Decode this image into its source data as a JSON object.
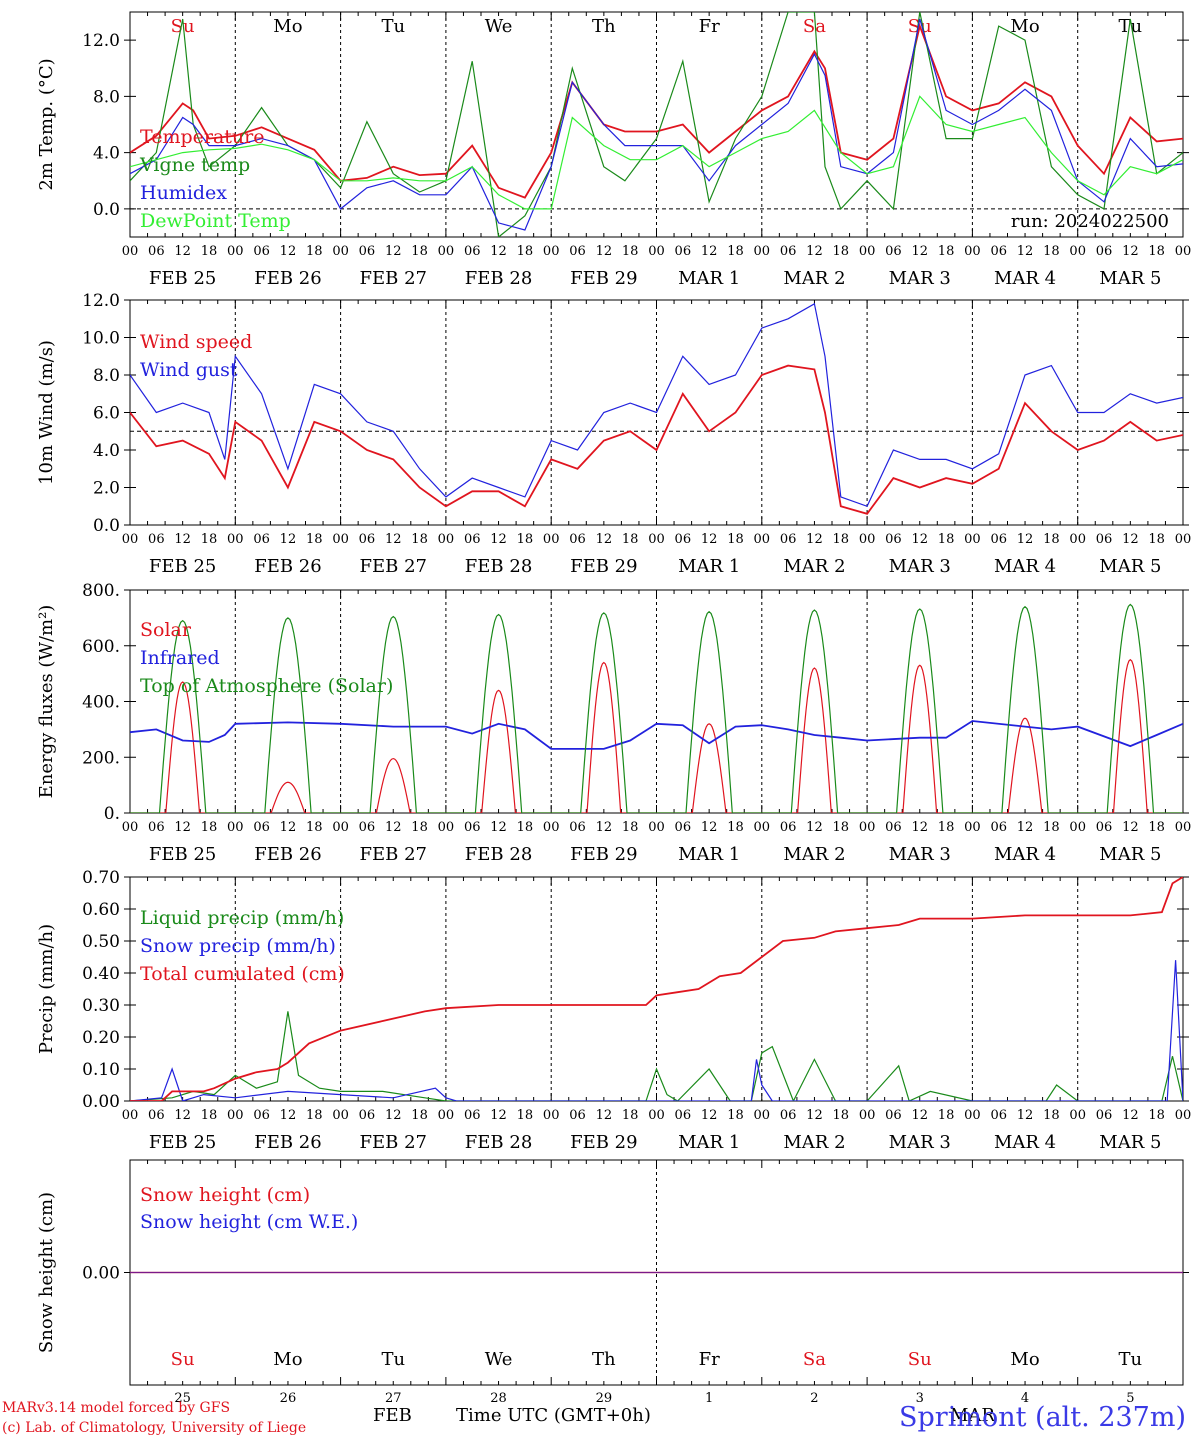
{
  "colors": {
    "red": "#e0151f",
    "blue": "#2222dd",
    "green": "#1a8a1a",
    "lightgreen": "#33ee33",
    "purple": "#7a1a8a",
    "axis": "#000000"
  },
  "day_names": [
    "Su",
    "Mo",
    "Tu",
    "We",
    "Th",
    "Fr",
    "Sa",
    "Su",
    "Mo",
    "Tu"
  ],
  "weekend_days": [
    0,
    6,
    7
  ],
  "date_labels": [
    "FEB  25",
    "FEB  26",
    "FEB  27",
    "FEB  28",
    "FEB  29",
    "MAR   1",
    "MAR   2",
    "MAR   3",
    "MAR   4",
    "MAR   5"
  ],
  "hour_labels": [
    "00",
    "06",
    "12",
    "18"
  ],
  "last_hour_label": "00",
  "day_numbers": [
    "25",
    "26",
    "27",
    "28",
    "29",
    "1",
    "2",
    "3",
    "4",
    "5"
  ],
  "footer": {
    "credit_line1": "MARv3.14 model forced by GFS",
    "credit_line2": "(c) Lab. of Climatology, University of Liege",
    "xlabel": "Time UTC (GMT+0h)",
    "month_feb": "FEB",
    "month_mar": "MAR",
    "station": "Sprimont (alt. 237m)"
  },
  "chart_data": [
    {
      "type": "line",
      "ylabel": "2m Temp. (°C)",
      "ylim": [
        -2.0,
        14.0
      ],
      "yticks": [
        0.0,
        4.0,
        8.0,
        12.0
      ],
      "ytick_labels": [
        "0.0",
        "4.0",
        "8.0",
        "12.0"
      ],
      "ref_line": 0.0,
      "annotation": "run: 2024022500",
      "series": [
        {
          "name": "Temperature",
          "color": "red",
          "x_days": [
            0,
            0.25,
            0.5,
            0.6,
            0.75,
            1,
            1.25,
            1.5,
            1.75,
            2,
            2.25,
            2.5,
            2.75,
            3,
            3.25,
            3.5,
            3.75,
            4,
            4.2,
            4.5,
            4.7,
            5,
            5.25,
            5.5,
            5.75,
            6,
            6.25,
            6.5,
            6.6,
            6.75,
            7,
            7.25,
            7.5,
            7.75,
            8,
            8.25,
            8.5,
            8.75,
            9,
            9.25,
            9.5,
            9.75,
            10
          ],
          "values": [
            4.0,
            5.2,
            7.5,
            7.0,
            5.0,
            5.2,
            5.8,
            5.0,
            4.2,
            2.0,
            2.2,
            3.0,
            2.4,
            2.5,
            4.5,
            1.5,
            0.8,
            4.0,
            9.0,
            6.0,
            5.5,
            5.5,
            6.0,
            4.0,
            5.5,
            7.0,
            8.0,
            11.2,
            10.0,
            4.0,
            3.5,
            5.0,
            13.0,
            8.0,
            7.0,
            7.5,
            9.0,
            8.0,
            4.5,
            2.5,
            6.5,
            4.8,
            5.0
          ]
        },
        {
          "name": "Vigne temp",
          "color": "green",
          "x_days": [
            0,
            0.25,
            0.5,
            0.6,
            0.75,
            1,
            1.25,
            1.5,
            1.75,
            2,
            2.25,
            2.5,
            2.75,
            3,
            3.25,
            3.5,
            3.75,
            4,
            4.2,
            4.5,
            4.7,
            5,
            5.25,
            5.5,
            5.75,
            6,
            6.25,
            6.5,
            6.6,
            6.75,
            7,
            7.25,
            7.5,
            7.75,
            8,
            8.25,
            8.5,
            8.75,
            9,
            9.25,
            9.5,
            9.75,
            10
          ],
          "values": [
            2.0,
            4.0,
            13.5,
            6.0,
            3.0,
            4.5,
            7.2,
            4.5,
            3.5,
            1.5,
            6.2,
            2.5,
            1.2,
            2.0,
            10.5,
            -2.0,
            -0.5,
            3.0,
            10.0,
            3.0,
            2.0,
            5.0,
            10.5,
            0.5,
            5.0,
            8.0,
            14.0,
            14.0,
            3.0,
            0.0,
            2.0,
            0.0,
            14.0,
            5.0,
            5.0,
            13.0,
            12.0,
            3.0,
            1.0,
            0.0,
            13.5,
            2.5,
            4.0
          ]
        },
        {
          "name": "Humidex",
          "color": "blue",
          "x_days": [
            0,
            0.25,
            0.5,
            0.6,
            0.75,
            1,
            1.25,
            1.5,
            1.75,
            2,
            2.25,
            2.5,
            2.75,
            3,
            3.25,
            3.5,
            3.75,
            4,
            4.2,
            4.5,
            4.7,
            5,
            5.25,
            5.5,
            5.75,
            6,
            6.25,
            6.5,
            6.6,
            6.75,
            7,
            7.25,
            7.5,
            7.75,
            8,
            8.25,
            8.5,
            8.75,
            9,
            9.25,
            9.5,
            9.75,
            10
          ],
          "values": [
            2.5,
            3.5,
            6.5,
            6.0,
            4.5,
            4.5,
            5.0,
            4.5,
            3.5,
            0.0,
            1.5,
            2.0,
            1.0,
            1.0,
            3.0,
            -1.0,
            -1.5,
            3.0,
            9.0,
            6.0,
            4.5,
            4.5,
            4.5,
            2.0,
            4.5,
            6.0,
            7.5,
            11.0,
            9.5,
            3.0,
            2.5,
            4.0,
            13.5,
            7.0,
            6.0,
            7.0,
            8.5,
            7.0,
            2.0,
            0.5,
            5.0,
            3.0,
            3.2
          ]
        },
        {
          "name": "DewPoint Temp",
          "color": "lightgreen",
          "x_days": [
            0,
            0.25,
            0.5,
            0.75,
            1,
            1.25,
            1.5,
            1.75,
            2,
            2.25,
            2.5,
            2.75,
            3,
            3.25,
            3.5,
            3.75,
            4,
            4.2,
            4.5,
            4.75,
            5,
            5.25,
            5.5,
            5.75,
            6,
            6.25,
            6.5,
            6.75,
            7,
            7.25,
            7.5,
            7.75,
            8,
            8.25,
            8.5,
            8.75,
            9,
            9.25,
            9.5,
            9.75,
            10
          ],
          "values": [
            3.0,
            3.5,
            4.0,
            4.2,
            4.3,
            4.6,
            4.2,
            3.5,
            2.0,
            2.0,
            2.2,
            2.0,
            2.0,
            3.0,
            1.0,
            0.0,
            0.0,
            6.5,
            4.5,
            3.5,
            3.5,
            4.5,
            3.0,
            4.0,
            5.0,
            5.5,
            7.0,
            4.0,
            2.5,
            3.0,
            8.0,
            6.0,
            5.5,
            6.0,
            6.5,
            4.0,
            2.0,
            1.0,
            3.0,
            2.5,
            3.5
          ]
        }
      ]
    },
    {
      "type": "line",
      "ylabel": "10m Wind (m/s)",
      "ylim": [
        0.0,
        12.0
      ],
      "yticks": [
        0.0,
        2.0,
        4.0,
        6.0,
        8.0,
        10.0,
        12.0
      ],
      "ytick_labels": [
        "0.0",
        "2.0",
        "4.0",
        "6.0",
        "8.0",
        "10.0",
        "12.0"
      ],
      "ref_line": 5.0,
      "series": [
        {
          "name": "Wind speed",
          "color": "red",
          "x_days": [
            0,
            0.25,
            0.5,
            0.75,
            0.9,
            1,
            1.25,
            1.5,
            1.75,
            2,
            2.25,
            2.5,
            2.75,
            3,
            3.25,
            3.5,
            3.75,
            4,
            4.25,
            4.5,
            4.75,
            5,
            5.25,
            5.5,
            5.75,
            6,
            6.25,
            6.5,
            6.6,
            6.75,
            7,
            7.25,
            7.5,
            7.75,
            8,
            8.25,
            8.5,
            8.75,
            9,
            9.25,
            9.5,
            9.75,
            10
          ],
          "values": [
            6.0,
            4.2,
            4.5,
            3.8,
            2.5,
            5.5,
            4.5,
            2.0,
            5.5,
            5.0,
            4.0,
            3.5,
            2.0,
            1.0,
            1.8,
            1.8,
            1.0,
            3.5,
            3.0,
            4.5,
            5.0,
            4.0,
            7.0,
            5.0,
            6.0,
            8.0,
            8.5,
            8.3,
            6.0,
            1.0,
            0.6,
            2.5,
            2.0,
            2.5,
            2.2,
            3.0,
            6.5,
            5.0,
            4.0,
            4.5,
            5.5,
            4.5,
            4.8
          ]
        },
        {
          "name": "Wind gust",
          "color": "blue",
          "x_days": [
            0,
            0.25,
            0.5,
            0.75,
            0.9,
            1,
            1.25,
            1.5,
            1.75,
            2,
            2.25,
            2.5,
            2.75,
            3,
            3.25,
            3.5,
            3.75,
            4,
            4.25,
            4.5,
            4.75,
            5,
            5.25,
            5.5,
            5.75,
            6,
            6.25,
            6.5,
            6.6,
            6.75,
            7,
            7.25,
            7.5,
            7.75,
            8,
            8.25,
            8.5,
            8.75,
            9,
            9.25,
            9.5,
            9.75,
            10
          ],
          "values": [
            8.0,
            6.0,
            6.5,
            6.0,
            3.5,
            9.0,
            7.0,
            3.0,
            7.5,
            7.0,
            5.5,
            5.0,
            3.0,
            1.5,
            2.5,
            2.0,
            1.5,
            4.5,
            4.0,
            6.0,
            6.5,
            6.0,
            9.0,
            7.5,
            8.0,
            10.5,
            11.0,
            11.8,
            9.0,
            1.5,
            1.0,
            4.0,
            3.5,
            3.5,
            3.0,
            3.8,
            8.0,
            8.5,
            6.0,
            6.0,
            7.0,
            6.5,
            6.8
          ]
        }
      ]
    },
    {
      "type": "line",
      "ylabel": "Energy fluxes (W/m²)",
      "ylim": [
        0,
        800
      ],
      "yticks": [
        0,
        200,
        400,
        600,
        800
      ],
      "ytick_labels": [
        "0.",
        "200.",
        "400.",
        "600.",
        "800."
      ],
      "series": [
        {
          "name": "Solar",
          "color": "red",
          "peaks": [
            470,
            110,
            195,
            440,
            540,
            320,
            520,
            530,
            340,
            550
          ]
        },
        {
          "name": "Infrared",
          "color": "blue",
          "x_days": [
            0,
            0.25,
            0.5,
            0.75,
            0.9,
            1,
            1.5,
            2,
            2.5,
            3,
            3.25,
            3.5,
            3.75,
            4,
            4.5,
            4.75,
            5,
            5.25,
            5.5,
            5.75,
            6,
            6.25,
            6.5,
            6.75,
            7,
            7.5,
            7.75,
            8,
            8.5,
            8.75,
            9,
            9.5,
            9.75,
            10
          ],
          "values": [
            290,
            300,
            260,
            255,
            280,
            320,
            325,
            320,
            310,
            310,
            285,
            320,
            300,
            230,
            230,
            260,
            320,
            315,
            250,
            310,
            315,
            300,
            280,
            270,
            260,
            270,
            270,
            330,
            310,
            300,
            310,
            240,
            280,
            320
          ]
        },
        {
          "name": "Top of Atmosphere (Solar)",
          "color": "green",
          "peaks": [
            690,
            700,
            705,
            712,
            718,
            722,
            728,
            732,
            740,
            748
          ]
        }
      ]
    },
    {
      "type": "line",
      "ylabel": "Precip (mm/h)",
      "ylim": [
        0.0,
        0.7
      ],
      "yticks": [
        0.0,
        0.1,
        0.2,
        0.3,
        0.4,
        0.5,
        0.6,
        0.7
      ],
      "ytick_labels": [
        "0.00",
        "0.10",
        "0.20",
        "0.30",
        "0.40",
        "0.50",
        "0.60",
        "0.70"
      ],
      "series": [
        {
          "name": "Liquid precip (mm/h)",
          "color": "green",
          "x_days": [
            0,
            0.4,
            0.6,
            0.8,
            1,
            1.2,
            1.4,
            1.5,
            1.6,
            1.8,
            2,
            2.4,
            2.8,
            3,
            3.5,
            4,
            4.9,
            5.0,
            5.1,
            5.2,
            5.5,
            5.7,
            5.9,
            6.0,
            6.1,
            6.3,
            6.5,
            6.7,
            7.0,
            7.3,
            7.4,
            7.6,
            8.0,
            8.7,
            8.8,
            9.0,
            9.8,
            9.9,
            10
          ],
          "values": [
            0,
            0.01,
            0.03,
            0.02,
            0.08,
            0.04,
            0.06,
            0.28,
            0.08,
            0.04,
            0.03,
            0.03,
            0.01,
            0.0,
            0.0,
            0.0,
            0.0,
            0.1,
            0.02,
            0.0,
            0.1,
            0.0,
            0.0,
            0.15,
            0.17,
            0.0,
            0.13,
            0.0,
            0.0,
            0.11,
            0.0,
            0.03,
            0.0,
            0.0,
            0.05,
            0.0,
            0.0,
            0.14,
            0.0
          ]
        },
        {
          "name": "Snow precip (mm/h)",
          "color": "blue",
          "x_days": [
            0,
            0.3,
            0.4,
            0.5,
            0.7,
            1,
            1.5,
            2,
            2.5,
            2.9,
            3.0,
            3.1,
            4,
            5,
            5.9,
            5.95,
            6.0,
            6.1,
            7,
            9,
            9.85,
            9.93,
            10
          ],
          "values": [
            0,
            0.01,
            0.1,
            0.0,
            0.02,
            0.01,
            0.03,
            0.02,
            0.01,
            0.04,
            0.01,
            0.0,
            0.0,
            0.0,
            0.0,
            0.13,
            0.05,
            0.0,
            0.0,
            0.0,
            0.0,
            0.44,
            0.0
          ]
        },
        {
          "name": "Total cumulated (cm)",
          "color": "red",
          "x_days": [
            0,
            0.3,
            0.4,
            0.7,
            0.8,
            1.0,
            1.2,
            1.4,
            1.5,
            1.7,
            2.0,
            2.4,
            2.8,
            3.0,
            3.5,
            4.0,
            4.9,
            5.0,
            5.2,
            5.4,
            5.6,
            5.8,
            6.0,
            6.2,
            6.5,
            6.7,
            7.0,
            7.3,
            7.5,
            8.0,
            8.5,
            9.0,
            9.5,
            9.8,
            9.9,
            10
          ],
          "values": [
            0,
            0.0,
            0.03,
            0.03,
            0.04,
            0.07,
            0.09,
            0.1,
            0.12,
            0.18,
            0.22,
            0.25,
            0.28,
            0.29,
            0.3,
            0.3,
            0.3,
            0.33,
            0.34,
            0.35,
            0.39,
            0.4,
            0.45,
            0.5,
            0.51,
            0.53,
            0.54,
            0.55,
            0.57,
            0.57,
            0.58,
            0.58,
            0.58,
            0.59,
            0.68,
            0.7
          ]
        }
      ]
    },
    {
      "type": "line",
      "ylabel": "Snow height (cm)",
      "ylim": [
        -0.1,
        0.1
      ],
      "yticks": [
        0.0
      ],
      "ytick_labels": [
        "0.00"
      ],
      "series": [
        {
          "name": "Snow height (cm)",
          "color": "red",
          "x_days": [
            0,
            10
          ],
          "values": [
            0,
            0
          ]
        },
        {
          "name": "Snow height (cm W.E.)",
          "color": "blue",
          "x_days": [
            0,
            10
          ],
          "values": [
            0,
            0
          ]
        }
      ]
    }
  ]
}
